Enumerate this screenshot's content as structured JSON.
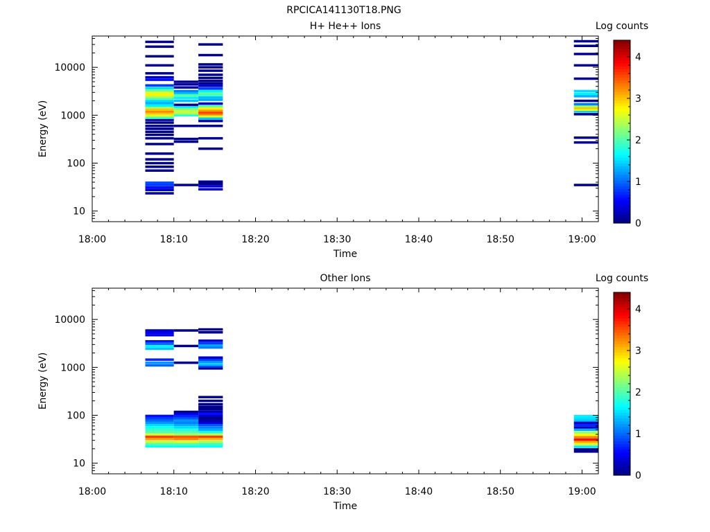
{
  "page_title": "RPCICA141130T18.PNG",
  "chart_data": [
    {
      "type": "heatmap",
      "title": "H+ He++ Ions",
      "xlabel": "Time",
      "ylabel": "Energy (eV)",
      "x_ticks": [
        "18:00",
        "18:10",
        "18:20",
        "18:30",
        "18:40",
        "18:50",
        "19:00"
      ],
      "xlim_minutes": [
        0,
        62
      ],
      "y_scale": "log",
      "ylim": [
        6,
        45000
      ],
      "y_ticks": [
        10,
        100,
        1000,
        10000
      ],
      "y_tick_labels": [
        "10",
        "100",
        "1000",
        "10000"
      ],
      "colorbar": {
        "label": "Log counts",
        "range": [
          0,
          4.4
        ],
        "ticks": [
          "0",
          "1",
          "2",
          "3",
          "4"
        ]
      },
      "grid": false,
      "columns": [
        {
          "t_start": 6.5,
          "t_end": 10.0,
          "bins": [
            [
              23.5,
              0.2
            ],
            [
              27.5,
              0.3
            ],
            [
              31,
              0.6
            ],
            [
              35,
              0.8
            ],
            [
              39,
              0.9
            ],
            [
              70,
              0.05
            ],
            [
              84,
              0.05
            ],
            [
              100,
              0.05
            ],
            [
              120,
              0.05
            ],
            [
              158,
              0.05
            ],
            [
              250,
              0.05
            ],
            [
              330,
              0.05
            ],
            [
              390,
              0.05
            ],
            [
              450,
              0.05
            ],
            [
              520,
              0.05
            ],
            [
              600,
              0.05
            ],
            [
              700,
              0.05
            ],
            [
              800,
              0.1
            ],
            [
              880,
              1.8
            ],
            [
              950,
              2.3
            ],
            [
              1000,
              2.6
            ],
            [
              1100,
              3.0
            ],
            [
              1200,
              3.3
            ],
            [
              1300,
              3.0
            ],
            [
              1450,
              2.3
            ],
            [
              1600,
              1.6
            ],
            [
              1800,
              1.3
            ],
            [
              2000,
              1.5
            ],
            [
              2200,
              2.0
            ],
            [
              2450,
              2.4
            ],
            [
              2700,
              2.8
            ],
            [
              3000,
              2.6
            ],
            [
              3300,
              2.1
            ],
            [
              3700,
              1.5
            ],
            [
              4200,
              0.8
            ],
            [
              5500,
              0.6
            ],
            [
              6200,
              0.3
            ],
            [
              7500,
              0.05
            ],
            [
              11000,
              0.05
            ],
            [
              17000,
              0.05
            ],
            [
              27000,
              0.05
            ],
            [
              34000,
              0.05
            ]
          ]
        },
        {
          "t_start": 10.0,
          "t_end": 13.0,
          "bins": [
            [
              35,
              0.1
            ],
            [
              280,
              0.05
            ],
            [
              320,
              0.05
            ],
            [
              600,
              0.05
            ],
            [
              1000,
              1.8
            ],
            [
              1100,
              2.4
            ],
            [
              1200,
              2.5
            ],
            [
              1350,
              2.2
            ],
            [
              1500,
              1.6
            ],
            [
              1650,
              0.05
            ],
            [
              2000,
              1.4
            ],
            [
              2300,
              1.6
            ],
            [
              2600,
              2.0
            ],
            [
              2900,
              1.4
            ],
            [
              3200,
              1.1
            ],
            [
              3800,
              0.2
            ],
            [
              4400,
              0.1
            ],
            [
              5000,
              0.05
            ]
          ]
        },
        {
          "t_start": 13.0,
          "t_end": 16.0,
          "bins": [
            [
              28.5,
              0.4
            ],
            [
              33,
              0.3
            ],
            [
              37,
              0.1
            ],
            [
              41,
              0.05
            ],
            [
              200,
              0.05
            ],
            [
              330,
              0.05
            ],
            [
              600,
              0.05
            ],
            [
              760,
              0.1
            ],
            [
              850,
              1.4
            ],
            [
              950,
              2.6
            ],
            [
              1050,
              3.3
            ],
            [
              1150,
              3.6
            ],
            [
              1250,
              3.2
            ],
            [
              1380,
              2.8
            ],
            [
              1550,
              2.0
            ],
            [
              1750,
              0.3
            ],
            [
              2100,
              1.3
            ],
            [
              2350,
              1.4
            ],
            [
              2650,
              1.9
            ],
            [
              2900,
              2.1
            ],
            [
              3200,
              1.6
            ],
            [
              3600,
              0.8
            ],
            [
              4100,
              0.3
            ],
            [
              4600,
              0.1
            ],
            [
              5200,
              0.05
            ],
            [
              6000,
              0.05
            ],
            [
              7000,
              0.05
            ],
            [
              8500,
              0.05
            ],
            [
              10000,
              0.05
            ],
            [
              11500,
              0.05
            ],
            [
              18000,
              0.05
            ],
            [
              30000,
              0.05
            ]
          ]
        },
        {
          "t_start": 59.0,
          "t_end": 62.0,
          "bins": [
            [
              35,
              0.05
            ],
            [
              270,
              0.05
            ],
            [
              340,
              0.05
            ],
            [
              1050,
              0.05
            ],
            [
              1200,
              1.4
            ],
            [
              1300,
              2.6
            ],
            [
              1420,
              3.0
            ],
            [
              1550,
              2.3
            ],
            [
              1700,
              1.1
            ],
            [
              2000,
              0.05
            ],
            [
              2500,
              1.3
            ],
            [
              2800,
              1.6
            ],
            [
              3200,
              1.5
            ],
            [
              5800,
              0.05
            ],
            [
              11000,
              0.05
            ],
            [
              19000,
              0.05
            ],
            [
              28000,
              0.05
            ],
            [
              35000,
              0.05
            ]
          ]
        }
      ]
    },
    {
      "type": "heatmap",
      "title": "Other Ions",
      "xlabel": "Time",
      "ylabel": "Energy (eV)",
      "x_ticks": [
        "18:00",
        "18:10",
        "18:20",
        "18:30",
        "18:40",
        "18:50",
        "19:00"
      ],
      "xlim_minutes": [
        0,
        62
      ],
      "y_scale": "log",
      "ylim": [
        6,
        45000
      ],
      "y_ticks": [
        10,
        100,
        1000,
        10000
      ],
      "y_tick_labels": [
        "10",
        "100",
        "1000",
        "10000"
      ],
      "colorbar": {
        "label": "Log counts",
        "range": [
          0,
          4.4
        ],
        "ticks": [
          "0",
          "1",
          "2",
          "3",
          "4"
        ]
      },
      "grid": false,
      "columns": [
        {
          "t_start": 6.5,
          "t_end": 10.0,
          "bins": [
            [
              22.5,
              1.7
            ],
            [
              25,
              2.0
            ],
            [
              28,
              2.5
            ],
            [
              32,
              3.2
            ],
            [
              36,
              3.6
            ],
            [
              40,
              2.5
            ],
            [
              45,
              2.0
            ],
            [
              50,
              1.9
            ],
            [
              56,
              1.7
            ],
            [
              63,
              1.5
            ],
            [
              70,
              1.2
            ],
            [
              78,
              1.0
            ],
            [
              87,
              0.8
            ],
            [
              97,
              0.6
            ],
            [
              1100,
              1.0
            ],
            [
              1250,
              1.2
            ],
            [
              1450,
              0.7
            ],
            [
              2450,
              1.4
            ],
            [
              2750,
              1.6
            ],
            [
              3100,
              1.0
            ],
            [
              3500,
              0.6
            ],
            [
              4700,
              0.4
            ],
            [
              5300,
              0.5
            ],
            [
              5900,
              0.3
            ]
          ]
        },
        {
          "t_start": 10.0,
          "t_end": 13.0,
          "bins": [
            [
              22.5,
              1.7
            ],
            [
              25,
              2.0
            ],
            [
              28,
              2.6
            ],
            [
              32,
              3.3
            ],
            [
              36,
              3.5
            ],
            [
              40,
              2.3
            ],
            [
              45,
              2.0
            ],
            [
              50,
              1.8
            ],
            [
              56,
              1.5
            ],
            [
              63,
              1.3
            ],
            [
              70,
              1.1
            ],
            [
              78,
              1.2
            ],
            [
              87,
              0.9
            ],
            [
              97,
              0.7
            ],
            [
              108,
              0.5
            ],
            [
              118,
              0.05
            ],
            [
              1250,
              0.05
            ],
            [
              2800,
              0.05
            ],
            [
              5900,
              0.05
            ]
          ]
        },
        {
          "t_start": 13.0,
          "t_end": 16.0,
          "bins": [
            [
              22.5,
              1.7
            ],
            [
              25,
              1.9
            ],
            [
              28,
              2.4
            ],
            [
              32,
              3.1
            ],
            [
              36,
              3.6
            ],
            [
              40,
              2.4
            ],
            [
              45,
              1.7
            ],
            [
              50,
              1.3
            ],
            [
              56,
              1.1
            ],
            [
              63,
              0.9
            ],
            [
              70,
              0.4
            ],
            [
              78,
              0.2
            ],
            [
              87,
              0.05
            ],
            [
              97,
              0.3
            ],
            [
              108,
              0.6
            ],
            [
              120,
              0.2
            ],
            [
              135,
              0.05
            ],
            [
              150,
              0.05
            ],
            [
              170,
              0.05
            ],
            [
              200,
              0.05
            ],
            [
              240,
              0.05
            ],
            [
              950,
              0.05
            ],
            [
              1050,
              0.9
            ],
            [
              1150,
              1.4
            ],
            [
              1300,
              1.2
            ],
            [
              1450,
              0.8
            ],
            [
              1600,
              0.3
            ],
            [
              2600,
              1.1
            ],
            [
              2900,
              1.3
            ],
            [
              3200,
              0.8
            ],
            [
              3600,
              0.3
            ],
            [
              5400,
              0.05
            ],
            [
              6200,
              0.05
            ]
          ]
        },
        {
          "t_start": 59.0,
          "t_end": 62.0,
          "bins": [
            [
              17.5,
              0.05
            ],
            [
              19.5,
              0.05
            ],
            [
              22,
              1.6
            ],
            [
              25,
              2.6
            ],
            [
              28,
              3.1
            ],
            [
              31,
              3.8
            ],
            [
              35,
              3.3
            ],
            [
              39,
              2.7
            ],
            [
              44,
              2.3
            ],
            [
              50,
              1.3
            ],
            [
              56,
              0.3
            ],
            [
              63,
              0.7
            ],
            [
              70,
              0.3
            ],
            [
              78,
              1.4
            ],
            [
              87,
              1.5
            ],
            [
              96,
              1.6
            ]
          ]
        }
      ]
    }
  ]
}
